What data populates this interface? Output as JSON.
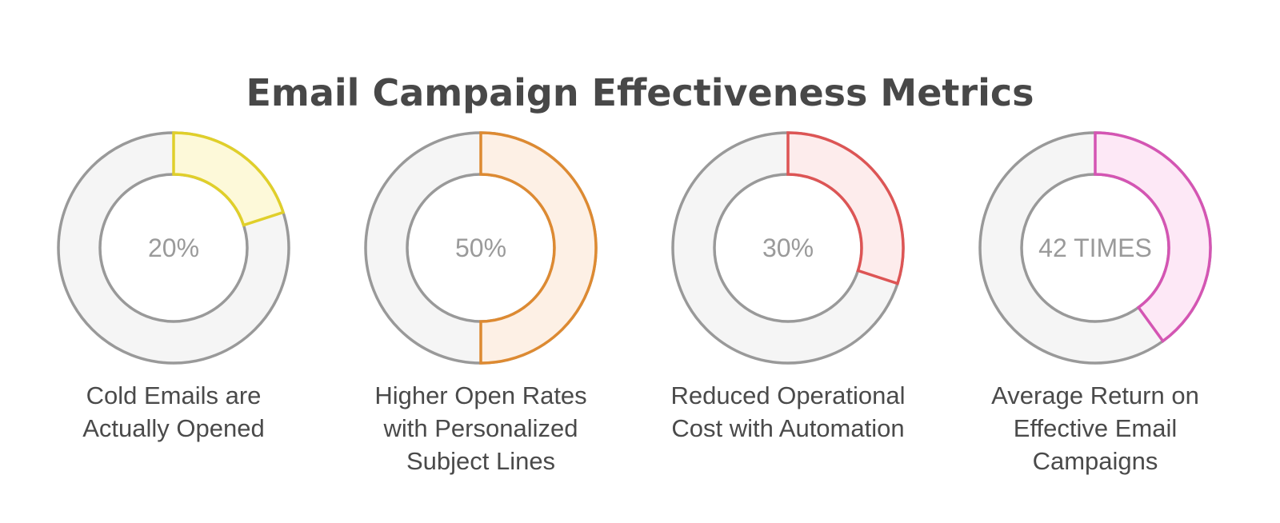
{
  "chart_data": {
    "type": "pie",
    "variant": "donut",
    "title": "Email Campaign Effectiveness Metrics",
    "track_color": "#f5f5f5",
    "track_stroke": "#999999",
    "items": [
      {
        "value_label": "20%",
        "fraction": 0.2,
        "caption": "Cold Emails are\nActually Opened",
        "stroke": "#e0cf2a",
        "fill": "#fdf9d9"
      },
      {
        "value_label": "50%",
        "fraction": 0.5,
        "caption": "Higher Open Rates\nwith Personalized\nSubject Lines",
        "stroke": "#dd8a32",
        "fill": "#fdf0e5"
      },
      {
        "value_label": "30%",
        "fraction": 0.3,
        "caption": "Reduced Operational\nCost with Automation",
        "stroke": "#dd5555",
        "fill": "#fdecec"
      },
      {
        "value_label": "42 TIMES",
        "fraction": 0.4,
        "caption": "Average Return on\nEffective Email\nCampaigns",
        "stroke": "#d455b3",
        "fill": "#fde8f6"
      }
    ]
  }
}
